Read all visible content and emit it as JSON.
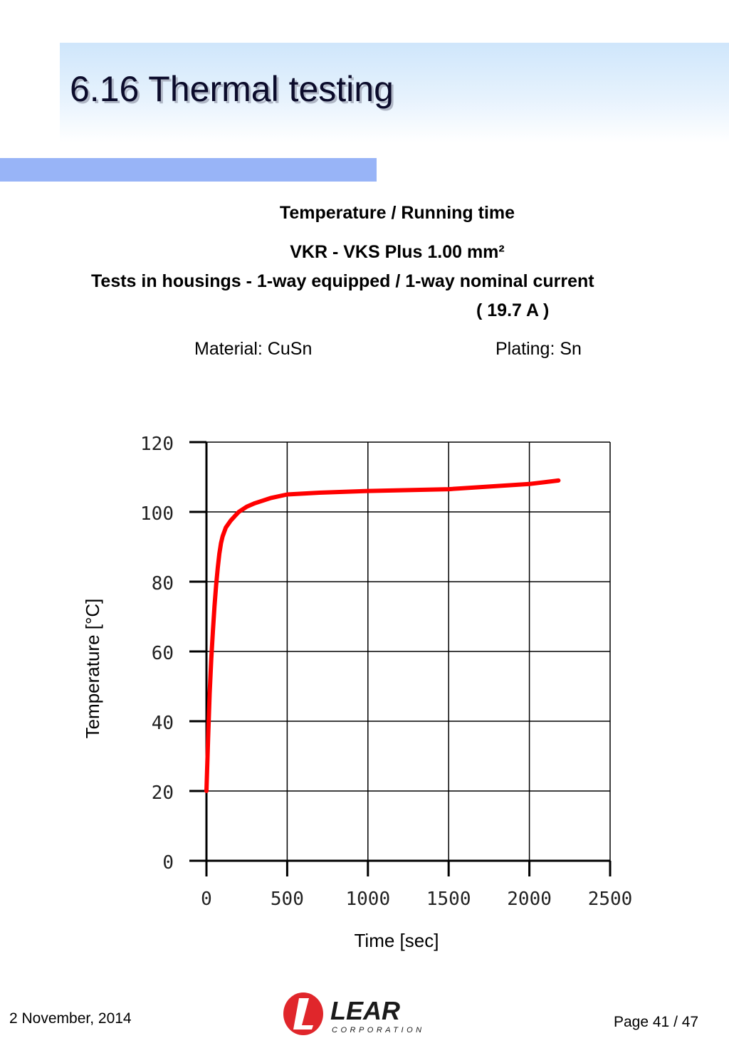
{
  "slide": {
    "title": "6.16 Thermal testing",
    "heading1": "Temperature / Running time",
    "heading2": "VKR - VKS  Plus 1.00 mm²",
    "heading3": "Tests in housings - 1-way equipped / 1-way nominal current",
    "heading4": "( 19.7 A )",
    "material": "Material: CuSn",
    "plating": "Plating: Sn"
  },
  "chart_data": {
    "type": "line",
    "title": "",
    "xlabel": "Time [sec]",
    "ylabel": "Temperature [°C]",
    "xlim": [
      0,
      2500
    ],
    "ylim": [
      0,
      120
    ],
    "xticks": [
      0,
      500,
      1000,
      1500,
      2000,
      2500
    ],
    "yticks": [
      0,
      20,
      40,
      60,
      80,
      100,
      120
    ],
    "x_tick_labels": [
      "0",
      "500",
      "1000",
      "1500",
      "2000",
      "2500"
    ],
    "y_tick_labels": [
      "0",
      "20",
      "40",
      "60",
      "80",
      "100",
      "120"
    ],
    "grid": true,
    "series": [
      {
        "color": "#ff0000",
        "x": [
          0,
          10,
          20,
          30,
          40,
          50,
          60,
          70,
          80,
          90,
          100,
          120,
          150,
          180,
          200,
          250,
          300,
          400,
          500,
          700,
          1000,
          1500,
          2000,
          2180
        ],
        "y": [
          20,
          35,
          48,
          58,
          66,
          73,
          79,
          84,
          88,
          91,
          93,
          95.5,
          97.5,
          99,
          100,
          101.5,
          102.5,
          104,
          105,
          105.5,
          106,
          106.5,
          108,
          109
        ]
      }
    ]
  },
  "footer": {
    "date": "2 November, 2014",
    "page": "Page 41 / 47",
    "logo_text": "LEAR",
    "logo_subtext": "CORPORATION"
  },
  "colors": {
    "title_band": "#cfe6fb",
    "accent_bar": "#98b4f7",
    "curve": "#ff0000",
    "logo_red": "#e0262b"
  }
}
